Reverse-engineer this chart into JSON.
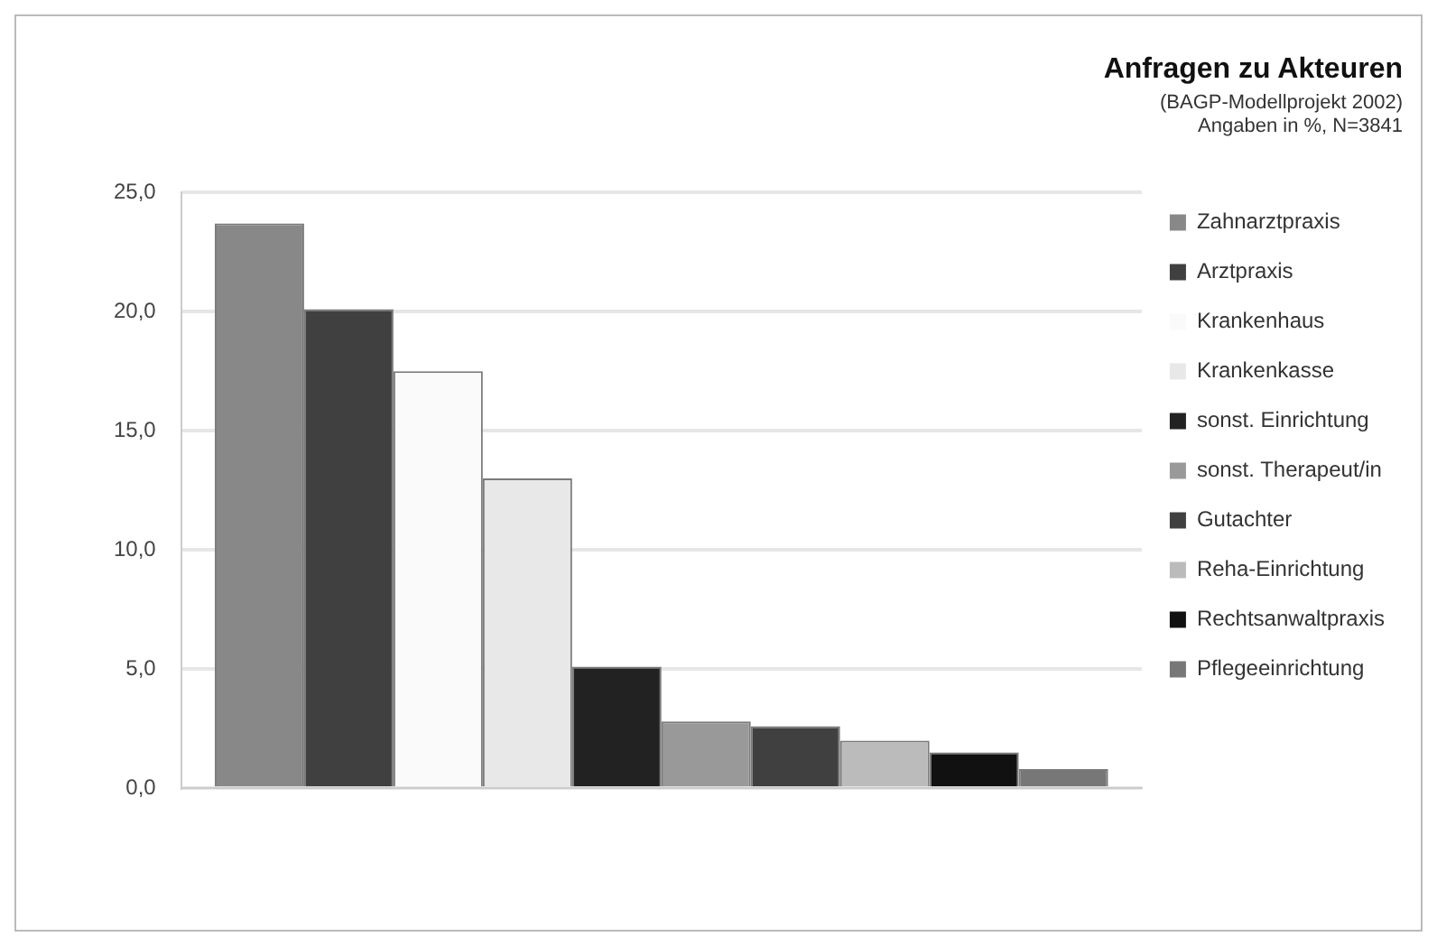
{
  "chart_data": {
    "type": "bar",
    "title": "Anfragen zu Akteuren",
    "subtitle": [
      "(BAGP-Modellprojekt 2002)",
      "Angaben in %, N=3841"
    ],
    "categories": [
      null
    ],
    "series": [
      {
        "name": "Zahnarztpraxis",
        "color": "#888888",
        "values": [
          23.7
        ]
      },
      {
        "name": "Arztpraxis",
        "color": "#404040",
        "values": [
          20.1
        ]
      },
      {
        "name": "Krankenhaus",
        "color": "#fafafa",
        "values": [
          17.5
        ]
      },
      {
        "name": "Krankenkasse",
        "color": "#e8e8e8",
        "values": [
          13.0
        ]
      },
      {
        "name": "sonst. Einrichtung",
        "color": "#222222",
        "values": [
          5.1
        ]
      },
      {
        "name": "sonst. Therapeut/in",
        "color": "#999999",
        "values": [
          2.8
        ]
      },
      {
        "name": "Gutachter",
        "color": "#404040",
        "values": [
          2.6
        ]
      },
      {
        "name": "Reha-Einrichtung",
        "color": "#bbbbbb",
        "values": [
          2.0
        ]
      },
      {
        "name": "Rechtsanwaltpraxis",
        "color": "#111111",
        "values": [
          1.5
        ]
      },
      {
        "name": "Pflegeeinrichtung",
        "color": "#777777",
        "values": [
          0.8
        ]
      }
    ],
    "ylim": [
      0,
      25
    ],
    "yticks": [
      {
        "value": 0,
        "label": "0,0"
      },
      {
        "value": 5,
        "label": "5,0"
      },
      {
        "value": 10,
        "label": "10,0"
      },
      {
        "value": 15,
        "label": "15,0"
      },
      {
        "value": 20,
        "label": "20,0"
      },
      {
        "value": 25,
        "label": "25,0"
      }
    ],
    "grid": "y",
    "legend": "right"
  }
}
